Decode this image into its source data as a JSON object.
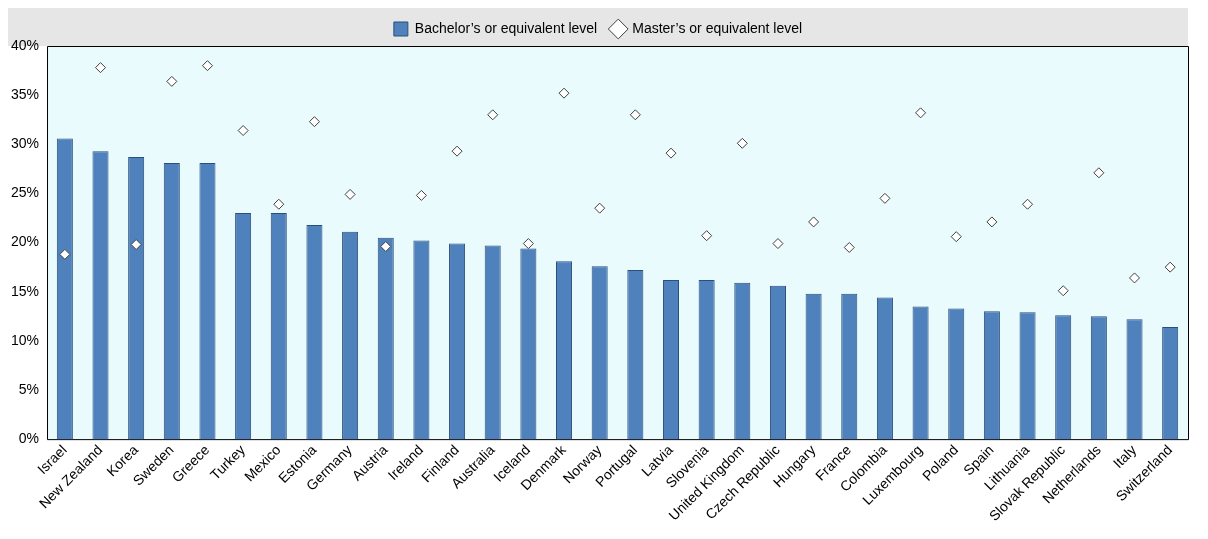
{
  "chart_data": {
    "type": "bar",
    "categories": [
      "Israel",
      "New Zealand",
      "Korea",
      "Sweden",
      "Greece",
      "Turkey",
      "Mexico",
      "Estonia",
      "Germany",
      "Austria",
      "Ireland",
      "Finland",
      "Australia",
      "Iceland",
      "Denmark",
      "Norway",
      "Portugal",
      "Latvia",
      "Slovenia",
      "United Kingdom",
      "Czech Republic",
      "Hungary",
      "France",
      "Colombia",
      "Luxembourg",
      "Poland",
      "Spain",
      "Lithuania",
      "Slovak Republic",
      "Netherlands",
      "Italy",
      "Switzerland"
    ],
    "series": [
      {
        "name": "Bachelor’s or equivalent level",
        "color": "#4f81bd",
        "values": [
          30.6,
          29.3,
          28.7,
          28.1,
          28.1,
          23.0,
          23.0,
          21.8,
          21.1,
          20.5,
          20.2,
          19.9,
          19.7,
          19.4,
          18.1,
          17.6,
          17.2,
          16.2,
          16.2,
          15.9,
          15.6,
          14.8,
          14.8,
          14.4,
          13.5,
          13.3,
          13.0,
          12.9,
          12.6,
          12.5,
          12.2,
          11.4
        ]
      },
      {
        "name": "Master’s or equivalent level",
        "type": "scatter",
        "marker": "diamond",
        "color": "#404040",
        "values": [
          18.8,
          37.8,
          19.8,
          36.4,
          38.0,
          31.4,
          23.9,
          32.3,
          24.9,
          19.6,
          24.8,
          29.3,
          33.0,
          19.9,
          35.2,
          23.5,
          33.0,
          29.1,
          20.7,
          30.1,
          19.9,
          22.1,
          19.5,
          24.5,
          33.2,
          20.6,
          22.1,
          23.9,
          15.1,
          27.1,
          16.4,
          17.5
        ]
      }
    ],
    "ylim": [
      0,
      40
    ],
    "yticks": [
      {
        "value": 0,
        "label": "0%"
      },
      {
        "value": 5,
        "label": "5%"
      },
      {
        "value": 10,
        "label": "10%"
      },
      {
        "value": 15,
        "label": "15%"
      },
      {
        "value": 20,
        "label": "20%"
      },
      {
        "value": 25,
        "label": "25%"
      },
      {
        "value": 30,
        "label": "30%"
      },
      {
        "value": 35,
        "label": "35%"
      },
      {
        "value": 40,
        "label": "40%"
      }
    ],
    "grid": false,
    "legend": "top"
  }
}
